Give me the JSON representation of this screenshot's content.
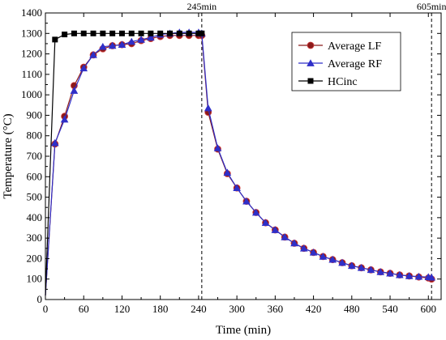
{
  "chart_data": {
    "type": "line",
    "xlabel": "Time (min)",
    "ylabel": "Temperature (°C)",
    "xlim": [
      0,
      620
    ],
    "ylim": [
      0,
      1400
    ],
    "xticks": [
      0,
      60,
      120,
      180,
      240,
      300,
      360,
      420,
      480,
      540,
      600
    ],
    "xtick_labels": [
      "0",
      "60",
      "120",
      "180",
      "240",
      "300",
      "360",
      "420",
      "480",
      "540",
      "600"
    ],
    "yticks": [
      0,
      100,
      200,
      300,
      400,
      500,
      600,
      700,
      800,
      900,
      1000,
      1100,
      1200,
      1300,
      1400
    ],
    "ytick_labels": [
      "0",
      "100",
      "200",
      "300",
      "400",
      "500",
      "600",
      "700",
      "800",
      "900",
      "1000",
      "1100",
      "1200",
      "1300",
      "1400"
    ],
    "grid": false,
    "legend_position": "top-right",
    "annotations": [
      {
        "text": "245min",
        "x": 245
      },
      {
        "text": "605min",
        "x": 605
      }
    ],
    "series": [
      {
        "name": "Average LF",
        "color": "#8b1a1a",
        "marker": "circle",
        "x": [
          0,
          15,
          30,
          45,
          60,
          75,
          90,
          105,
          120,
          135,
          150,
          165,
          180,
          195,
          210,
          225,
          240,
          245,
          255,
          270,
          285,
          300,
          315,
          330,
          345,
          360,
          375,
          390,
          405,
          420,
          435,
          450,
          465,
          480,
          495,
          510,
          525,
          540,
          555,
          570,
          585,
          600,
          605
        ],
        "y": [
          20,
          760,
          895,
          1045,
          1135,
          1195,
          1225,
          1240,
          1245,
          1250,
          1265,
          1275,
          1285,
          1290,
          1290,
          1290,
          1290,
          1290,
          915,
          735,
          615,
          545,
          480,
          425,
          375,
          340,
          305,
          275,
          250,
          230,
          210,
          195,
          180,
          165,
          155,
          145,
          135,
          128,
          120,
          115,
          110,
          105,
          100
        ]
      },
      {
        "name": "Average RF",
        "color": "#2f2fc8",
        "marker": "triangle",
        "x": [
          0,
          15,
          30,
          45,
          60,
          75,
          90,
          105,
          120,
          135,
          150,
          165,
          180,
          195,
          210,
          225,
          240,
          245,
          255,
          270,
          285,
          300,
          315,
          330,
          345,
          360,
          375,
          390,
          405,
          420,
          435,
          450,
          465,
          480,
          495,
          510,
          525,
          540,
          555,
          570,
          585,
          600,
          605
        ],
        "y": [
          20,
          765,
          880,
          1020,
          1130,
          1195,
          1235,
          1240,
          1245,
          1260,
          1270,
          1280,
          1295,
          1300,
          1305,
          1305,
          1305,
          1300,
          935,
          740,
          620,
          545,
          480,
          425,
          375,
          340,
          305,
          275,
          250,
          230,
          210,
          195,
          180,
          165,
          155,
          145,
          135,
          128,
          120,
          115,
          112,
          110,
          108
        ]
      },
      {
        "name": "HCinc",
        "color": "#000000",
        "marker": "square",
        "x": [
          0,
          15,
          30,
          45,
          60,
          75,
          90,
          105,
          120,
          135,
          150,
          165,
          180,
          195,
          210,
          225,
          240,
          245
        ],
        "y": [
          20,
          1270,
          1295,
          1300,
          1300,
          1300,
          1300,
          1300,
          1300,
          1300,
          1300,
          1300,
          1300,
          1300,
          1300,
          1300,
          1300,
          1300
        ]
      }
    ]
  }
}
